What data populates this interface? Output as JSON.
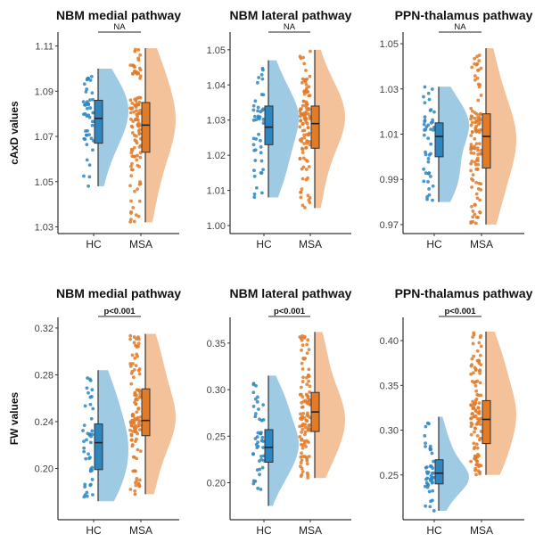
{
  "chart_data": [
    {
      "type": "raincloud",
      "title": "NBM medial pathway",
      "ylabel": "cAxD values",
      "categories": [
        "HC",
        "MSA"
      ],
      "significance": "NA",
      "significance_bold": false,
      "yticks": [
        1.03,
        1.05,
        1.07,
        1.09,
        1.11
      ],
      "tick_labels": [
        "1.03",
        "1.05",
        "1.07",
        "1.09",
        "1.11"
      ],
      "ylim": [
        1.029,
        1.113
      ],
      "series": [
        {
          "name": "HC",
          "color": "#2e86c1",
          "box": {
            "min": 1.048,
            "q1": 1.067,
            "median": 1.078,
            "q3": 1.086,
            "max": 1.1
          },
          "n": 45
        },
        {
          "name": "MSA",
          "color": "#e07b2a",
          "box": {
            "min": 1.032,
            "q1": 1.063,
            "median": 1.075,
            "q3": 1.085,
            "max": 1.109
          },
          "n": 110
        }
      ]
    },
    {
      "type": "raincloud",
      "title": "NBM lateral pathway",
      "ylabel": "",
      "categories": [
        "HC",
        "MSA"
      ],
      "significance": "NA",
      "significance_bold": false,
      "yticks": [
        1.0,
        1.01,
        1.02,
        1.03,
        1.04,
        1.05
      ],
      "tick_labels": [
        "1.00",
        "1.01",
        "1.02",
        "1.03",
        "1.04",
        "1.05"
      ],
      "ylim": [
        0.999,
        1.053
      ],
      "series": [
        {
          "name": "HC",
          "color": "#2e86c1",
          "box": {
            "min": 1.008,
            "q1": 1.023,
            "median": 1.028,
            "q3": 1.034,
            "max": 1.047
          },
          "n": 45
        },
        {
          "name": "MSA",
          "color": "#e07b2a",
          "box": {
            "min": 1.005,
            "q1": 1.022,
            "median": 1.029,
            "q3": 1.034,
            "max": 1.05
          },
          "n": 110
        }
      ]
    },
    {
      "type": "raincloud",
      "title": "PPN-thalamus pathway",
      "ylabel": "",
      "categories": [
        "HC",
        "MSA"
      ],
      "significance": "NA",
      "significance_bold": false,
      "yticks": [
        0.97,
        0.99,
        1.01,
        1.03,
        1.05
      ],
      "tick_labels": [
        "0.97",
        "0.99",
        "1.01",
        "1.03",
        "1.05"
      ],
      "ylim": [
        0.968,
        1.052
      ],
      "series": [
        {
          "name": "HC",
          "color": "#2e86c1",
          "box": {
            "min": 0.98,
            "q1": 1.0,
            "median": 1.009,
            "q3": 1.015,
            "max": 1.031
          },
          "n": 45
        },
        {
          "name": "MSA",
          "color": "#e07b2a",
          "box": {
            "min": 0.97,
            "q1": 0.995,
            "median": 1.009,
            "q3": 1.019,
            "max": 1.048
          },
          "n": 110
        }
      ]
    },
    {
      "type": "raincloud",
      "title": "NBM medial pathway",
      "ylabel": "FW values",
      "categories": [
        "HC",
        "MSA"
      ],
      "significance": "p<0.001",
      "significance_bold": true,
      "yticks": [
        0.2,
        0.24,
        0.28,
        0.32
      ],
      "tick_labels": [
        "0.20",
        "0.24",
        "0.28",
        "0.32"
      ],
      "ylim": [
        0.16,
        0.323
      ],
      "series": [
        {
          "name": "HC",
          "color": "#2e86c1",
          "box": {
            "min": 0.172,
            "q1": 0.199,
            "median": 0.222,
            "q3": 0.238,
            "max": 0.284
          },
          "n": 45
        },
        {
          "name": "MSA",
          "color": "#e07b2a",
          "box": {
            "min": 0.178,
            "q1": 0.228,
            "median": 0.241,
            "q3": 0.268,
            "max": 0.315
          },
          "n": 110
        }
      ]
    },
    {
      "type": "raincloud",
      "title": "NBM lateral pathway",
      "ylabel": "",
      "categories": [
        "HC",
        "MSA"
      ],
      "significance": "p<0.001",
      "significance_bold": true,
      "yticks": [
        0.2,
        0.25,
        0.3,
        0.35
      ],
      "tick_labels": [
        "0.20",
        "0.25",
        "0.30",
        "0.35"
      ],
      "ylim": [
        0.165,
        0.37
      ],
      "series": [
        {
          "name": "HC",
          "color": "#2e86c1",
          "box": {
            "min": 0.175,
            "q1": 0.222,
            "median": 0.238,
            "q3": 0.257,
            "max": 0.315
          },
          "n": 45
        },
        {
          "name": "MSA",
          "color": "#e07b2a",
          "box": {
            "min": 0.205,
            "q1": 0.255,
            "median": 0.276,
            "q3": 0.297,
            "max": 0.362
          },
          "n": 110
        }
      ]
    },
    {
      "type": "raincloud",
      "title": "PPN-thalamus pathway",
      "ylabel": "",
      "categories": [
        "HC",
        "MSA"
      ],
      "significance": "p<0.001",
      "significance_bold": true,
      "yticks": [
        0.25,
        0.3,
        0.35,
        0.4
      ],
      "tick_labels": [
        "0.25",
        "0.30",
        "0.35",
        "0.40"
      ],
      "ylim": [
        0.205,
        0.418
      ],
      "series": [
        {
          "name": "HC",
          "color": "#2e86c1",
          "box": {
            "min": 0.21,
            "q1": 0.24,
            "median": 0.252,
            "q3": 0.267,
            "max": 0.315
          },
          "n": 45
        },
        {
          "name": "MSA",
          "color": "#e07b2a",
          "box": {
            "min": 0.25,
            "q1": 0.285,
            "median": 0.312,
            "q3": 0.333,
            "max": 0.41
          },
          "n": 110
        }
      ]
    }
  ]
}
